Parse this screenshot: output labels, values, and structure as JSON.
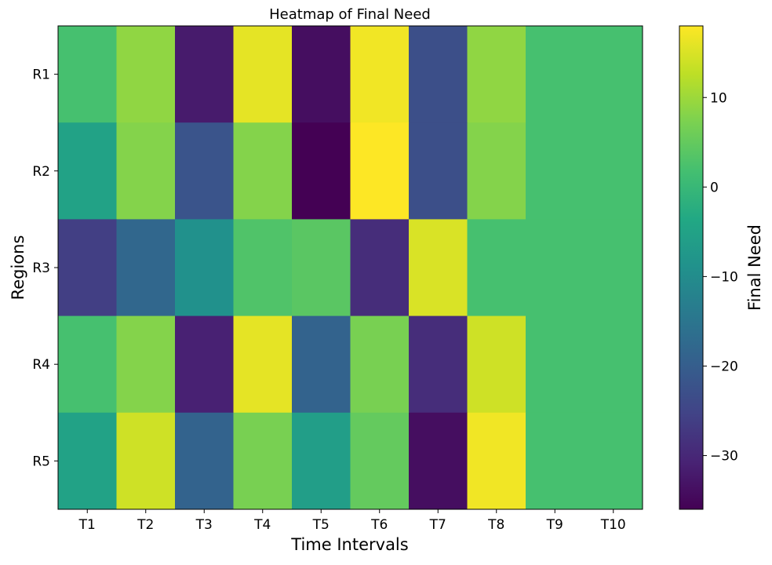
{
  "chart_data": {
    "type": "heatmap",
    "title": "Heatmap of Final Need",
    "xlabel": "Time Intervals",
    "ylabel": "Regions",
    "x_categories": [
      "T1",
      "T2",
      "T3",
      "T4",
      "T5",
      "T6",
      "T7",
      "T8",
      "T9",
      "T10"
    ],
    "y_categories": [
      "R1",
      "R2",
      "R3",
      "R4",
      "R5"
    ],
    "values": [
      [
        2,
        9,
        -32,
        16,
        -34,
        17,
        -23,
        9,
        2,
        2
      ],
      [
        -5,
        8,
        -22,
        8,
        -36,
        18,
        -23,
        8,
        2,
        2
      ],
      [
        -26,
        -18,
        -9,
        3,
        4,
        -29,
        15,
        2,
        2,
        2
      ],
      [
        2,
        8,
        -31,
        16,
        -19,
        7,
        -29,
        14,
        2,
        2
      ],
      [
        -5,
        14,
        -19,
        7,
        -6,
        5,
        -34,
        17,
        2,
        2
      ]
    ],
    "colorbar": {
      "label": "Final Need",
      "range": [
        -36,
        18
      ],
      "ticks": [
        10,
        0,
        -10,
        -20,
        -30
      ],
      "tick_labels": [
        "10",
        "0",
        "−10",
        "−20",
        "−30"
      ],
      "colormap": "viridis"
    },
    "grid": false
  }
}
